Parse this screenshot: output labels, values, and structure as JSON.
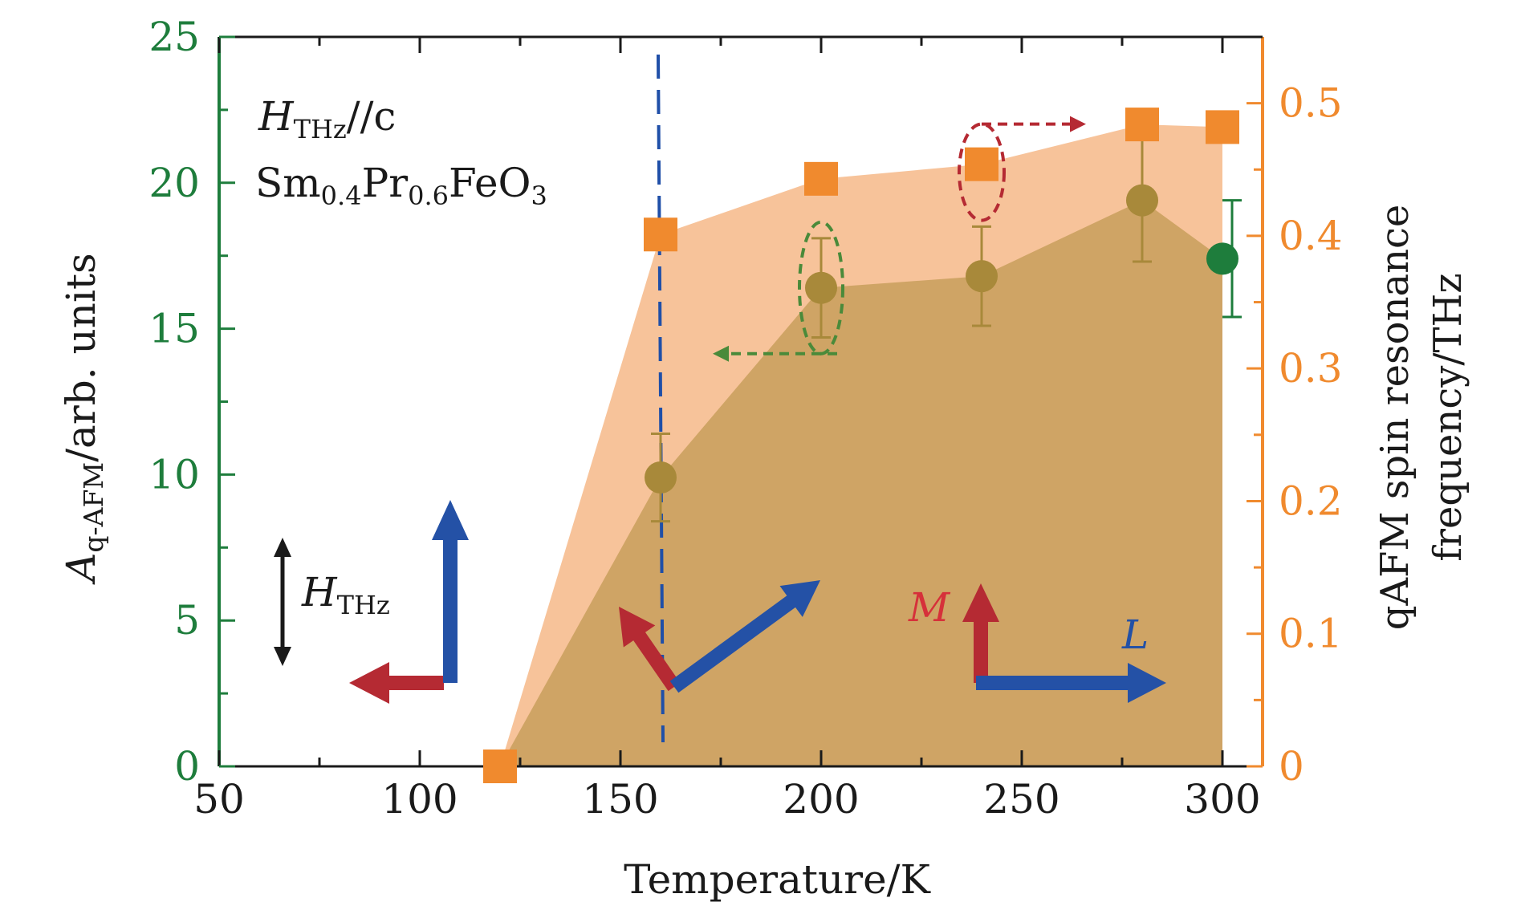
{
  "chart_data": {
    "type": "scatter",
    "xlabel": "Temperature/K",
    "ylabel_left": {
      "base": "A",
      "sub": "q-AFM",
      "rest": "/arb. units"
    },
    "ylabel_right": {
      "line1": "qAFM spin resonance",
      "line2": "frequency/THz"
    },
    "xlim": [
      50,
      310
    ],
    "ylim_left": [
      0,
      25
    ],
    "ylim_right": [
      0,
      0.55
    ],
    "x_ticks": [
      50,
      100,
      150,
      200,
      250,
      300
    ],
    "y_left_ticks": [
      0,
      5,
      10,
      15,
      20,
      25
    ],
    "y_right_ticks": [
      0,
      0.1,
      0.2,
      0.3,
      0.4,
      0.5
    ],
    "x_tick_labels": [
      "50",
      "100",
      "150",
      "200",
      "250",
      "300"
    ],
    "y_left_tick_labels": [
      "0",
      "5",
      "10",
      "15",
      "20",
      "25"
    ],
    "y_right_tick_labels": [
      "0",
      "0.1",
      "0.2",
      "0.3",
      "0.4",
      "0.5"
    ],
    "series": [
      {
        "name": "q-AFM amplitude",
        "axis": "left",
        "marker": "circle",
        "x": [
          160,
          200,
          240,
          280,
          300
        ],
        "y": [
          9.9,
          16.4,
          16.8,
          19.4,
          17.4
        ],
        "err": [
          1.5,
          1.7,
          1.7,
          2.1,
          2.0
        ],
        "shade_from": 120
      },
      {
        "name": "q-AFM resonance frequency",
        "axis": "right",
        "marker": "square",
        "x": [
          120,
          160,
          200,
          240,
          280,
          300
        ],
        "y": [
          0.0,
          0.401,
          0.443,
          0.454,
          0.484,
          0.482
        ]
      }
    ],
    "vline_x": 160,
    "annotations": {
      "field_direction": {
        "base": "H",
        "sub": "THz",
        "rest": "//c"
      },
      "compound": {
        "p1": "Sm",
        "s1": "0.4",
        "p2": "Pr",
        "s2": "0.6",
        "p3": "FeO",
        "s3": "3"
      },
      "legend_field": {
        "base": "H",
        "sub": "THz"
      },
      "label_M": "M",
      "label_L": "L"
    },
    "colors": {
      "left_axis": "#1e7d3c",
      "right_axis": "#f08a2e",
      "circle": "#a8893a",
      "circle_end": "#1e7d3c",
      "square": "#f08a2e",
      "shade_light": "#f7c39a",
      "shade_dark": "#cfa465",
      "vline": "#1f4fa8",
      "arrow_blue": "#2451a6",
      "arrow_red": "#b52a33",
      "dash_green": "#4a8a3a",
      "dash_red": "#b52a33",
      "label_M": "#d6313a",
      "label_L": "#2451a6",
      "text": "#1a1a1a"
    }
  }
}
